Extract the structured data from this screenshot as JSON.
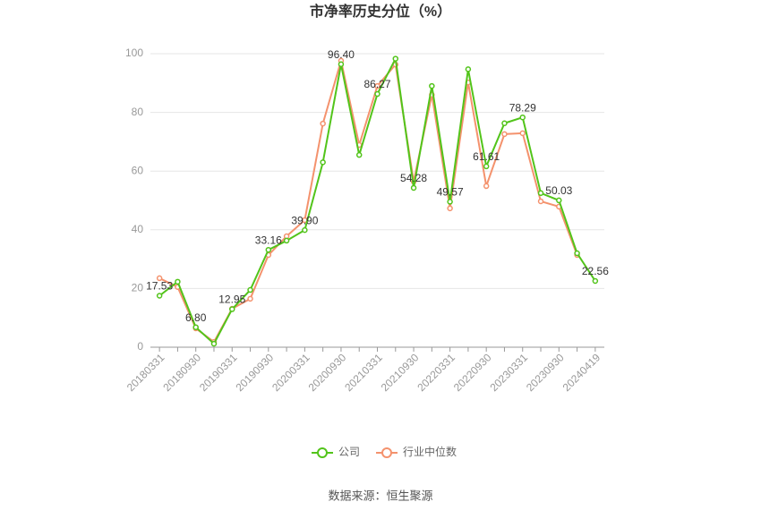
{
  "chart_data": {
    "type": "line",
    "title": "市净率历史分位（%）",
    "categories": [
      "20180331",
      null,
      "20180930",
      null,
      "20190331",
      null,
      "20190930",
      null,
      "20200331",
      null,
      "20200930",
      null,
      "20210331",
      null,
      "20210930",
      null,
      "20220331",
      null,
      "20220930",
      null,
      "20230331",
      null,
      "20230930",
      null,
      "20240419"
    ],
    "series": [
      {
        "name": "公司",
        "color": "#52c41a",
        "values": [
          17.53,
          22.3,
          6.8,
          1.2,
          12.95,
          19.5,
          33.16,
          36.3,
          39.9,
          63,
          96.4,
          65.5,
          86.27,
          98.3,
          54.28,
          89,
          49.57,
          94.7,
          61.61,
          76.3,
          78.29,
          52.5,
          50.03,
          32,
          22.56
        ],
        "value_labels": [
          "17.53",
          null,
          "6.80",
          null,
          "12.95",
          null,
          "33.16",
          null,
          "39.90",
          null,
          "96.40",
          null,
          "86.27",
          null,
          "54.28",
          null,
          "49.57",
          null,
          "61.61",
          null,
          "78.29",
          null,
          "50.03",
          null,
          "22.56"
        ]
      },
      {
        "name": "行业中位数",
        "color": "#f4926d",
        "values": [
          23.5,
          20.5,
          6.4,
          1.8,
          13.1,
          16.5,
          31.4,
          37.8,
          43.3,
          76.2,
          97.6,
          68.9,
          89,
          96.3,
          56.4,
          86,
          47.3,
          90.2,
          54.9,
          72.6,
          72.9,
          49.7,
          47.9,
          31.4,
          null
        ]
      }
    ],
    "ylim": [
      0,
      100
    ],
    "yticks": [
      0,
      20,
      40,
      60,
      80,
      100
    ],
    "grid": true,
    "legend": "bottom",
    "source": "数据来源：恒生聚源"
  }
}
